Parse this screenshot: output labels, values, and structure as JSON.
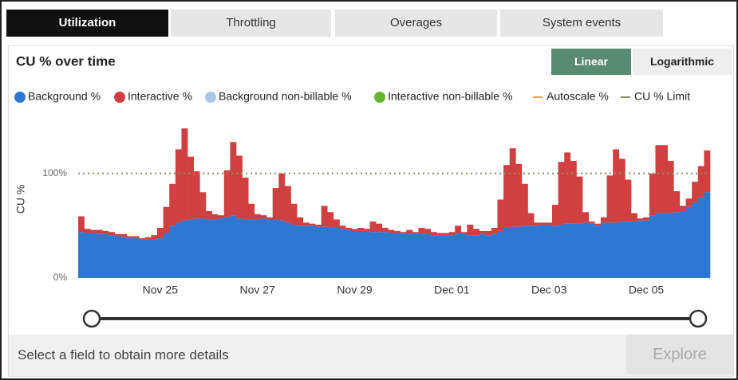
{
  "tabs": [
    {
      "label": "Utilization",
      "active": true
    },
    {
      "label": "Throttling",
      "active": false
    },
    {
      "label": "Overages",
      "active": false
    },
    {
      "label": "System events",
      "active": false
    }
  ],
  "scale_options": [
    "Linear",
    "Logarithmic"
  ],
  "footer": {
    "text": "Select a field to obtain more details",
    "button": "Explore"
  },
  "chart_data": {
    "type": "stacked_bar",
    "title": "CU % over time",
    "y_label": "CU %",
    "log_scale": false,
    "categories": [
      null,
      null,
      null,
      null,
      null,
      null,
      null,
      null,
      null,
      null,
      null,
      null,
      null,
      "Nov 25",
      null,
      null,
      null,
      null,
      null,
      null,
      null,
      null,
      null,
      null,
      null,
      null,
      null,
      null,
      null,
      "Nov 27",
      null,
      null,
      null,
      null,
      null,
      null,
      null,
      null,
      null,
      null,
      null,
      null,
      null,
      null,
      null,
      "Nov 29",
      null,
      null,
      null,
      null,
      null,
      null,
      null,
      null,
      null,
      null,
      null,
      null,
      null,
      null,
      null,
      "Dec 01",
      null,
      null,
      null,
      null,
      null,
      null,
      null,
      null,
      null,
      null,
      null,
      null,
      null,
      null,
      null,
      "Dec 03",
      null,
      null,
      null,
      null,
      null,
      null,
      null,
      null,
      null,
      null,
      null,
      null,
      null,
      null,
      null,
      "Dec 05",
      null,
      null,
      null,
      null,
      null,
      null,
      null,
      null,
      null,
      null
    ],
    "series": [
      {
        "name": "Background %",
        "color": "#2e78d2",
        "values": [
          44,
          43,
          43,
          42,
          42,
          41,
          40,
          39,
          38,
          38,
          37,
          37,
          37,
          38,
          43,
          50,
          53,
          55,
          56,
          57,
          57,
          56,
          56,
          57,
          58,
          60,
          57,
          56,
          56,
          56,
          57,
          56,
          56,
          55,
          53,
          51,
          50,
          50,
          50,
          49,
          49,
          48,
          48,
          47,
          46,
          45,
          45,
          45,
          44,
          44,
          44,
          43,
          43,
          42,
          42,
          42,
          42,
          42,
          41,
          41,
          41,
          41,
          42,
          42,
          41,
          41,
          42,
          41,
          42,
          45,
          48,
          49,
          49,
          50,
          50,
          50,
          51,
          51,
          50,
          51,
          52,
          52,
          52,
          53,
          52,
          50,
          53,
          53,
          53,
          54,
          54,
          54,
          55,
          55,
          60,
          62,
          62,
          62,
          63,
          64,
          68,
          72,
          77,
          82
        ]
      },
      {
        "name": "Interactive %",
        "color": "#d04040",
        "values": [
          15,
          4,
          3,
          4,
          3,
          3,
          2,
          3,
          2,
          2,
          1,
          2,
          4,
          10,
          25,
          40,
          70,
          88,
          60,
          45,
          25,
          8,
          5,
          3,
          45,
          70,
          60,
          40,
          15,
          5,
          3,
          2,
          30,
          45,
          35,
          20,
          8,
          3,
          2,
          2,
          20,
          15,
          8,
          3,
          2,
          2,
          3,
          2,
          10,
          8,
          4,
          3,
          2,
          2,
          4,
          2,
          6,
          5,
          3,
          2,
          2,
          3,
          8,
          2,
          10,
          6,
          3,
          4,
          6,
          30,
          60,
          75,
          60,
          40,
          12,
          3,
          2,
          2,
          20,
          60,
          68,
          60,
          45,
          10,
          2,
          2,
          5,
          45,
          70,
          60,
          40,
          8,
          2,
          3,
          40,
          65,
          65,
          50,
          20,
          5,
          8,
          20,
          30,
          40
        ]
      }
    ],
    "legend_extra": [
      {
        "name": "Background non-billable %",
        "color": "#a8c8e8",
        "marker": "circle"
      },
      {
        "name": "Interactive non-billable %",
        "color": "#6ab42d",
        "marker": "circle"
      },
      {
        "name": "Autoscale %",
        "color": "#f0a030",
        "marker": "dash"
      }
    ],
    "limit_line": {
      "name": "CU % Limit",
      "value": 100,
      "color": "#8a8a6a"
    },
    "ylim": [
      0,
      150
    ],
    "yticks": [
      {
        "value": 0,
        "label": "0%"
      },
      {
        "value": 100,
        "label": "100%"
      }
    ]
  }
}
